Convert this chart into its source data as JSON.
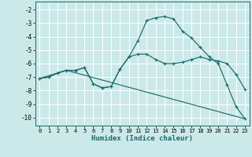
{
  "xlabel": "Humidex (Indice chaleur)",
  "ylabel": "",
  "bg_color": "#cce9e9",
  "grid_color": "#b0d8d8",
  "line_color": "#1a6b6b",
  "xlim": [
    -0.5,
    23.5
  ],
  "ylim": [
    -10.6,
    -1.4
  ],
  "xticks": [
    0,
    1,
    2,
    3,
    4,
    5,
    6,
    7,
    8,
    9,
    10,
    11,
    12,
    13,
    14,
    15,
    16,
    17,
    18,
    19,
    20,
    21,
    22,
    23
  ],
  "yticks": [
    -2,
    -3,
    -4,
    -5,
    -6,
    -7,
    -8,
    -9,
    -10
  ],
  "line1_x": [
    0,
    1,
    2,
    3,
    4,
    5,
    6,
    7,
    8,
    9,
    10,
    11,
    12,
    13,
    14,
    15,
    16,
    17,
    18,
    19,
    20,
    21,
    22,
    23
  ],
  "line1_y": [
    -7.1,
    -7.0,
    -6.7,
    -6.5,
    -6.5,
    -6.3,
    -7.5,
    -7.8,
    -7.7,
    -6.4,
    -5.5,
    -4.3,
    -2.8,
    -2.6,
    -2.5,
    -2.7,
    -3.6,
    -4.1,
    -4.8,
    -5.5,
    -6.0,
    -7.6,
    -9.2,
    -10.1
  ],
  "line2_x": [
    0,
    1,
    2,
    3,
    4,
    5,
    6,
    7,
    8,
    9,
    10,
    11,
    12,
    13,
    14,
    15,
    16,
    17,
    18,
    19,
    20,
    21,
    22,
    23
  ],
  "line2_y": [
    -7.1,
    -7.0,
    -6.7,
    -6.5,
    -6.5,
    -6.3,
    -7.5,
    -7.8,
    -7.7,
    -6.4,
    -5.5,
    -5.3,
    -5.3,
    -5.7,
    -6.0,
    -6.0,
    -5.9,
    -5.7,
    -5.5,
    -5.7,
    -5.8,
    -6.0,
    -6.8,
    -7.9
  ],
  "line3_x": [
    0,
    3,
    23
  ],
  "line3_y": [
    -7.1,
    -6.5,
    -10.1
  ]
}
